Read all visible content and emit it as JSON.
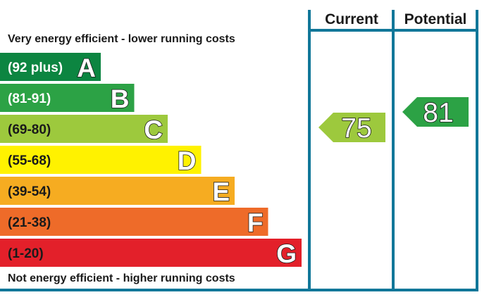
{
  "chart_data": {
    "type": "bar",
    "top_caption": "Very energy efficient - lower running costs",
    "bottom_caption": "Not energy efficient - higher running costs",
    "columns": [
      "Current",
      "Potential"
    ],
    "bands": [
      {
        "range": "(92 plus)",
        "letter": "A",
        "min": 92,
        "max": null,
        "color": "#0c8541",
        "text_style": "light"
      },
      {
        "range": "(81-91)",
        "letter": "B",
        "min": 81,
        "max": 91,
        "color": "#2ca245",
        "text_style": "light"
      },
      {
        "range": "(69-80)",
        "letter": "C",
        "min": 69,
        "max": 80,
        "color": "#9dc93d",
        "text_style": "dark"
      },
      {
        "range": "(55-68)",
        "letter": "D",
        "min": 55,
        "max": 68,
        "color": "#fff200",
        "text_style": "dark"
      },
      {
        "range": "(39-54)",
        "letter": "E",
        "min": 39,
        "max": 54,
        "color": "#f6ac21",
        "text_style": "dark"
      },
      {
        "range": "(21-38)",
        "letter": "F",
        "min": 21,
        "max": 38,
        "color": "#ee6b29",
        "text_style": "dark"
      },
      {
        "range": "(1-20)",
        "letter": "G",
        "min": 1,
        "max": 20,
        "color": "#e3202a",
        "text_style": "dark"
      }
    ],
    "current": {
      "value": "75",
      "band": "C",
      "color": "#9dc93d"
    },
    "potential": {
      "value": "81",
      "band": "B",
      "color": "#2ca245"
    },
    "frame_color": "#117799"
  }
}
